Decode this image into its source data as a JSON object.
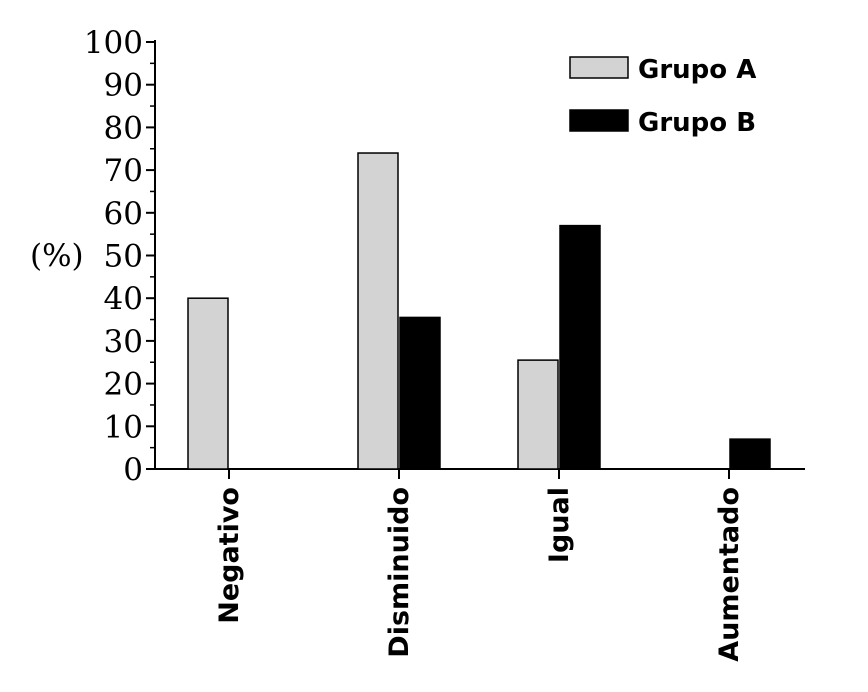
{
  "chart_data": {
    "type": "bar",
    "categories": [
      "Negativo",
      "Disminuido",
      "Igual",
      "Aumentado"
    ],
    "series": [
      {
        "name": "Grupo A",
        "values": [
          40,
          74,
          25.5,
          0
        ],
        "color": "#d3d3d3"
      },
      {
        "name": "Grupo B",
        "values": [
          0,
          35.5,
          57,
          7
        ],
        "color": "#000000"
      }
    ],
    "ylabel": "(%)",
    "ylim": [
      0,
      100
    ],
    "yticks": [
      0,
      10,
      20,
      30,
      40,
      50,
      60,
      70,
      80,
      90,
      100
    ],
    "legend_position": "top-right",
    "grid": false
  }
}
